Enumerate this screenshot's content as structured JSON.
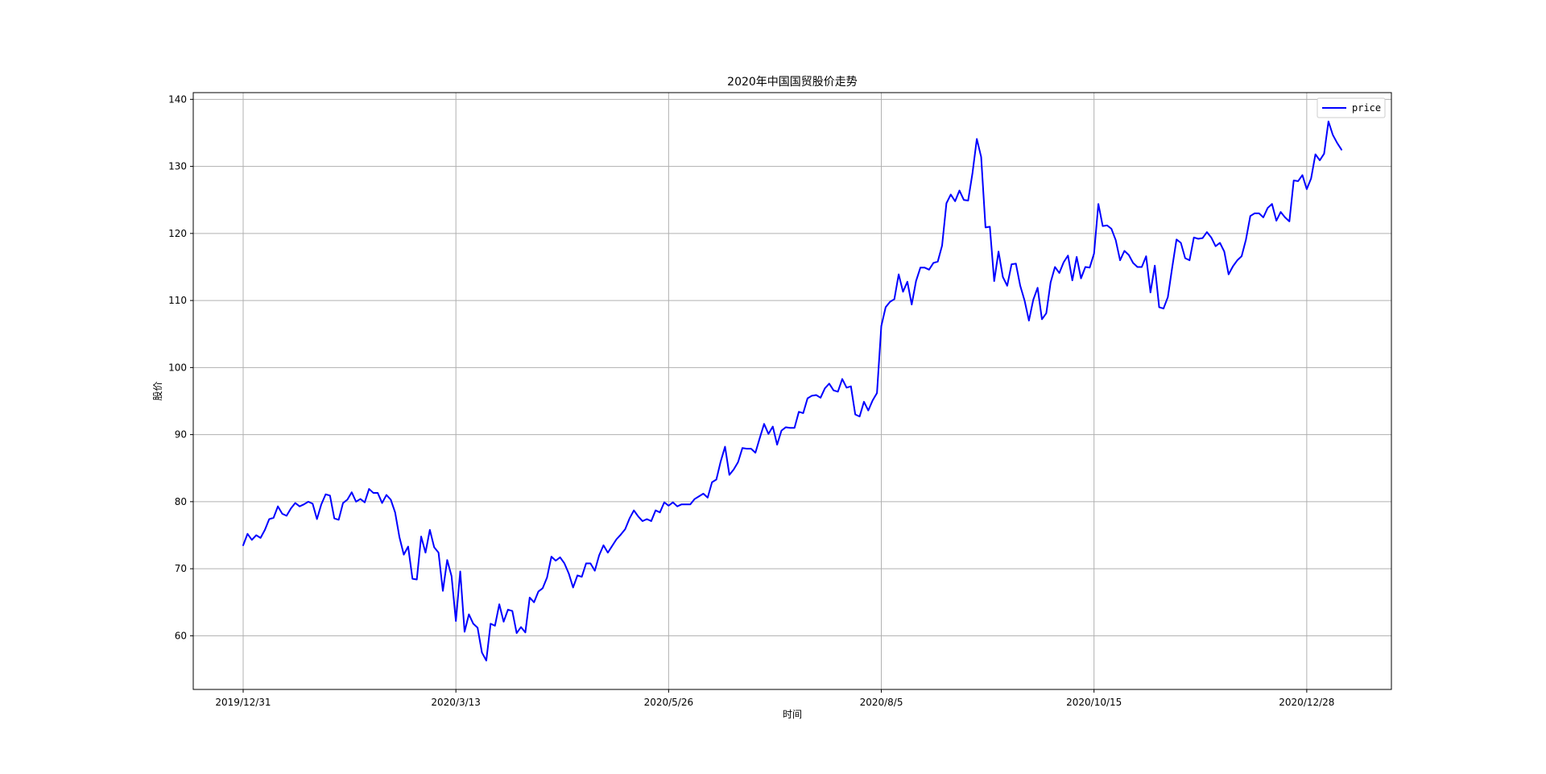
{
  "chart_data": {
    "type": "line",
    "title": "2020年中国国贸股价走势",
    "xlabel": "时间",
    "ylabel": "股价",
    "ylim": [
      52,
      141
    ],
    "yticks": [
      60,
      70,
      80,
      90,
      100,
      110,
      120,
      130,
      140
    ],
    "xticks": [
      {
        "index": 0,
        "label": "2019/12/31"
      },
      {
        "index": 49,
        "label": "2020/3/13"
      },
      {
        "index": 98,
        "label": "2020/5/26"
      },
      {
        "index": 147,
        "label": "2020/8/5"
      },
      {
        "index": 196,
        "label": "2020/10/15"
      },
      {
        "index": 245,
        "label": "2020/12/28"
      }
    ],
    "grid": true,
    "legend_position": "top-right",
    "series": [
      {
        "name": "price",
        "color": "#0000ff",
        "values": [
          73.5,
          75.2,
          74.3,
          75.0,
          74.6,
          75.8,
          77.4,
          77.6,
          79.3,
          78.2,
          77.9,
          79.0,
          79.8,
          79.3,
          79.6,
          80.0,
          79.7,
          77.4,
          79.6,
          81.1,
          80.9,
          77.5,
          77.3,
          79.8,
          80.3,
          81.4,
          80.0,
          80.4,
          79.9,
          81.9,
          81.3,
          81.3,
          79.8,
          81.0,
          80.3,
          78.4,
          74.7,
          72.1,
          73.3,
          68.5,
          68.4,
          74.8,
          72.4,
          75.8,
          73.2,
          72.4,
          66.7,
          71.3,
          68.9,
          62.2,
          69.6,
          60.6,
          63.2,
          61.8,
          61.2,
          57.5,
          56.3,
          61.8,
          61.5,
          64.7,
          62.1,
          63.9,
          63.7,
          60.4,
          61.3,
          60.5,
          65.7,
          65.0,
          66.6,
          67.1,
          68.7,
          71.8,
          71.2,
          71.7,
          70.8,
          69.3,
          67.2,
          69.0,
          68.8,
          70.8,
          70.8,
          69.7,
          72.0,
          73.5,
          72.4,
          73.4,
          74.4,
          75.1,
          75.9,
          77.5,
          78.7,
          77.8,
          77.1,
          77.4,
          77.1,
          78.7,
          78.4,
          79.9,
          79.4,
          79.9,
          79.3,
          79.6,
          79.6,
          79.6,
          80.4,
          80.8,
          81.2,
          80.6,
          82.9,
          83.3,
          86.0,
          88.2,
          84.0,
          84.8,
          85.9,
          88.0,
          87.9,
          87.9,
          87.3,
          89.5,
          91.6,
          90.1,
          91.2,
          88.5,
          90.6,
          91.1,
          91.0,
          91.0,
          93.4,
          93.2,
          95.4,
          95.8,
          95.9,
          95.5,
          96.9,
          97.6,
          96.6,
          96.4,
          98.3,
          97.0,
          97.2,
          93.0,
          92.7,
          94.9,
          93.6,
          95.1,
          96.2,
          106.2,
          109.0,
          109.8,
          110.2,
          113.9,
          111.3,
          112.8,
          109.4,
          112.9,
          114.9,
          114.9,
          114.6,
          115.6,
          115.8,
          118.2,
          124.5,
          125.8,
          124.8,
          126.4,
          125.0,
          124.9,
          129.0,
          134.1,
          131.4,
          120.9,
          121.0,
          112.9,
          117.3,
          113.5,
          112.2,
          115.4,
          115.5,
          112.2,
          110.0,
          107.0,
          110.1,
          111.9,
          107.2,
          108.1,
          112.7,
          115.0,
          114.1,
          115.7,
          116.7,
          113.0,
          116.5,
          113.3,
          115.0,
          114.9,
          117.0,
          124.4,
          121.1,
          121.2,
          120.7,
          119.0,
          116.0,
          117.4,
          116.8,
          115.6,
          115.0,
          115.0,
          116.6,
          111.2,
          115.2,
          109.0,
          108.8,
          110.5,
          114.9,
          119.1,
          118.6,
          116.3,
          116.0,
          119.4,
          119.2,
          119.3,
          120.2,
          119.4,
          118.1,
          118.6,
          117.3,
          113.9,
          115.1,
          116.0,
          116.6,
          119.1,
          122.6,
          123.0,
          123.0,
          122.4,
          123.8,
          124.4,
          121.9,
          123.2,
          122.4,
          121.8,
          127.9,
          127.8,
          128.7,
          126.6,
          128.2,
          131.8,
          130.9,
          131.9,
          136.7,
          134.7,
          133.5,
          132.5
        ]
      }
    ]
  }
}
